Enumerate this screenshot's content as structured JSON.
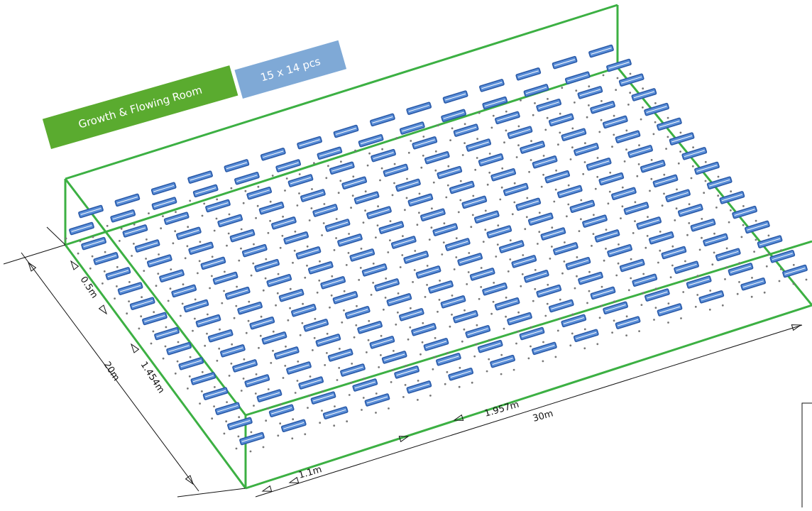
{
  "room_label": "Growth & Flowing Room",
  "count_label": "15 x 14 pcs",
  "grid": {
    "rows": 15,
    "cols": 14
  },
  "dimensions": {
    "length": "30m",
    "width": "20m",
    "offset_y": "0.5m",
    "spacing_y": "1.454m",
    "offset_x": "1.1m",
    "spacing_x": "1.957m"
  },
  "colors": {
    "room_outline": "#3cb043",
    "fixture": "#2a5aa8",
    "fixture_fill": "#5a8ed8",
    "label_green": "#5aab2f",
    "label_blue": "#7fa9d6",
    "dimension_line": "#111111"
  }
}
